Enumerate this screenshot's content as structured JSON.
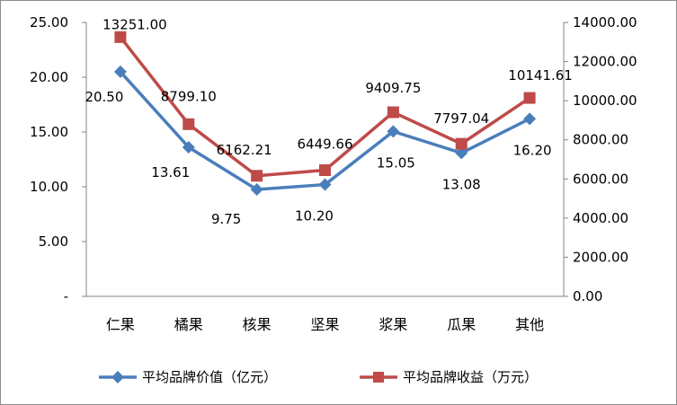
{
  "chart_data": {
    "type": "line",
    "categories": [
      "仁果",
      "橘果",
      "核果",
      "坚果",
      "浆果",
      "瓜果",
      "其他"
    ],
    "series": [
      {
        "name": "平均品牌价值（亿元）",
        "axis": "left",
        "color": "#4a7ebb",
        "marker": "diamond",
        "values": [
          20.5,
          13.61,
          9.75,
          10.2,
          15.05,
          13.08,
          16.2
        ],
        "labels": [
          "20.50",
          "13.61",
          "9.75",
          "10.20",
          "15.05",
          "13.08",
          "16.20"
        ]
      },
      {
        "name": "平均品牌收益（万元）",
        "axis": "right",
        "color": "#be4b48",
        "marker": "square",
        "values": [
          13251.0,
          8799.1,
          6162.21,
          6449.66,
          9409.75,
          7797.04,
          10141.61
        ],
        "labels": [
          "13251.00",
          "8799.10",
          "6162.21",
          "6449.66",
          "9409.75",
          "7797.04",
          "10141.61"
        ]
      }
    ],
    "y_left": {
      "ylim": [
        0,
        25
      ],
      "ticks": [
        0,
        5,
        10,
        15,
        20,
        25
      ],
      "tick_labels": [
        "-",
        "5.00",
        "10.00",
        "15.00",
        "20.00",
        "25.00"
      ]
    },
    "y_right": {
      "ylim": [
        0,
        14000
      ],
      "ticks": [
        0,
        2000,
        4000,
        6000,
        8000,
        10000,
        12000,
        14000
      ],
      "tick_labels": [
        "0.00",
        "2000.00",
        "4000.00",
        "6000.00",
        "8000.00",
        "10000.00",
        "12000.00",
        "14000.00"
      ]
    },
    "grid": false,
    "legend": "bottom"
  }
}
